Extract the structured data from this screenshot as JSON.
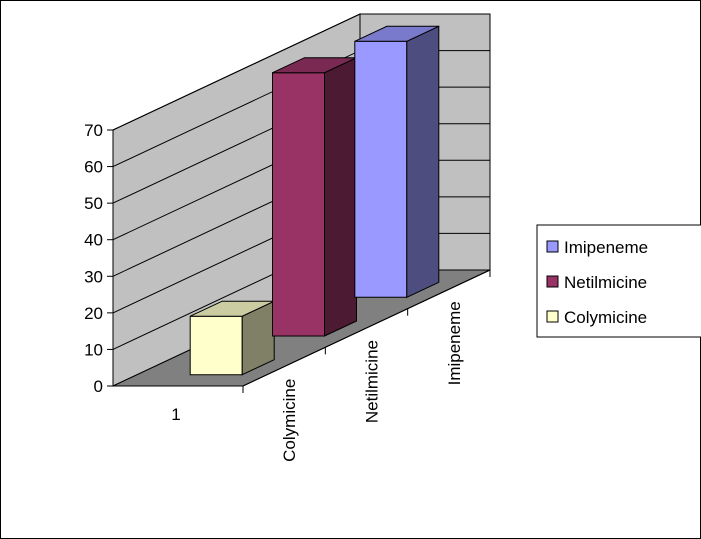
{
  "chart_data": {
    "type": "bar",
    "subtype": "3d-column",
    "title": "",
    "xlabel": "",
    "ylabel": "",
    "ylim": [
      0,
      70
    ],
    "yticks": [
      0,
      10,
      20,
      30,
      40,
      50,
      60,
      70
    ],
    "categories": [
      "1"
    ],
    "depth_labels": [
      "Colymicine",
      "Netilmicine",
      "Imipeneme"
    ],
    "series": [
      {
        "name": "Colymicine",
        "values": [
          16
        ],
        "color": "#ffffcc"
      },
      {
        "name": "Netilmicine",
        "values": [
          72
        ],
        "color": "#993366"
      },
      {
        "name": "Imipeneme",
        "values": [
          70
        ],
        "color": "#9999ff"
      }
    ],
    "legend_order": [
      "Imipeneme",
      "Netilmicine",
      "Colymicine"
    ],
    "legend_position": "right",
    "grid": true,
    "colors": {
      "walls": "#c0c0c0",
      "floor": "#808080",
      "frame": "#000000"
    }
  }
}
